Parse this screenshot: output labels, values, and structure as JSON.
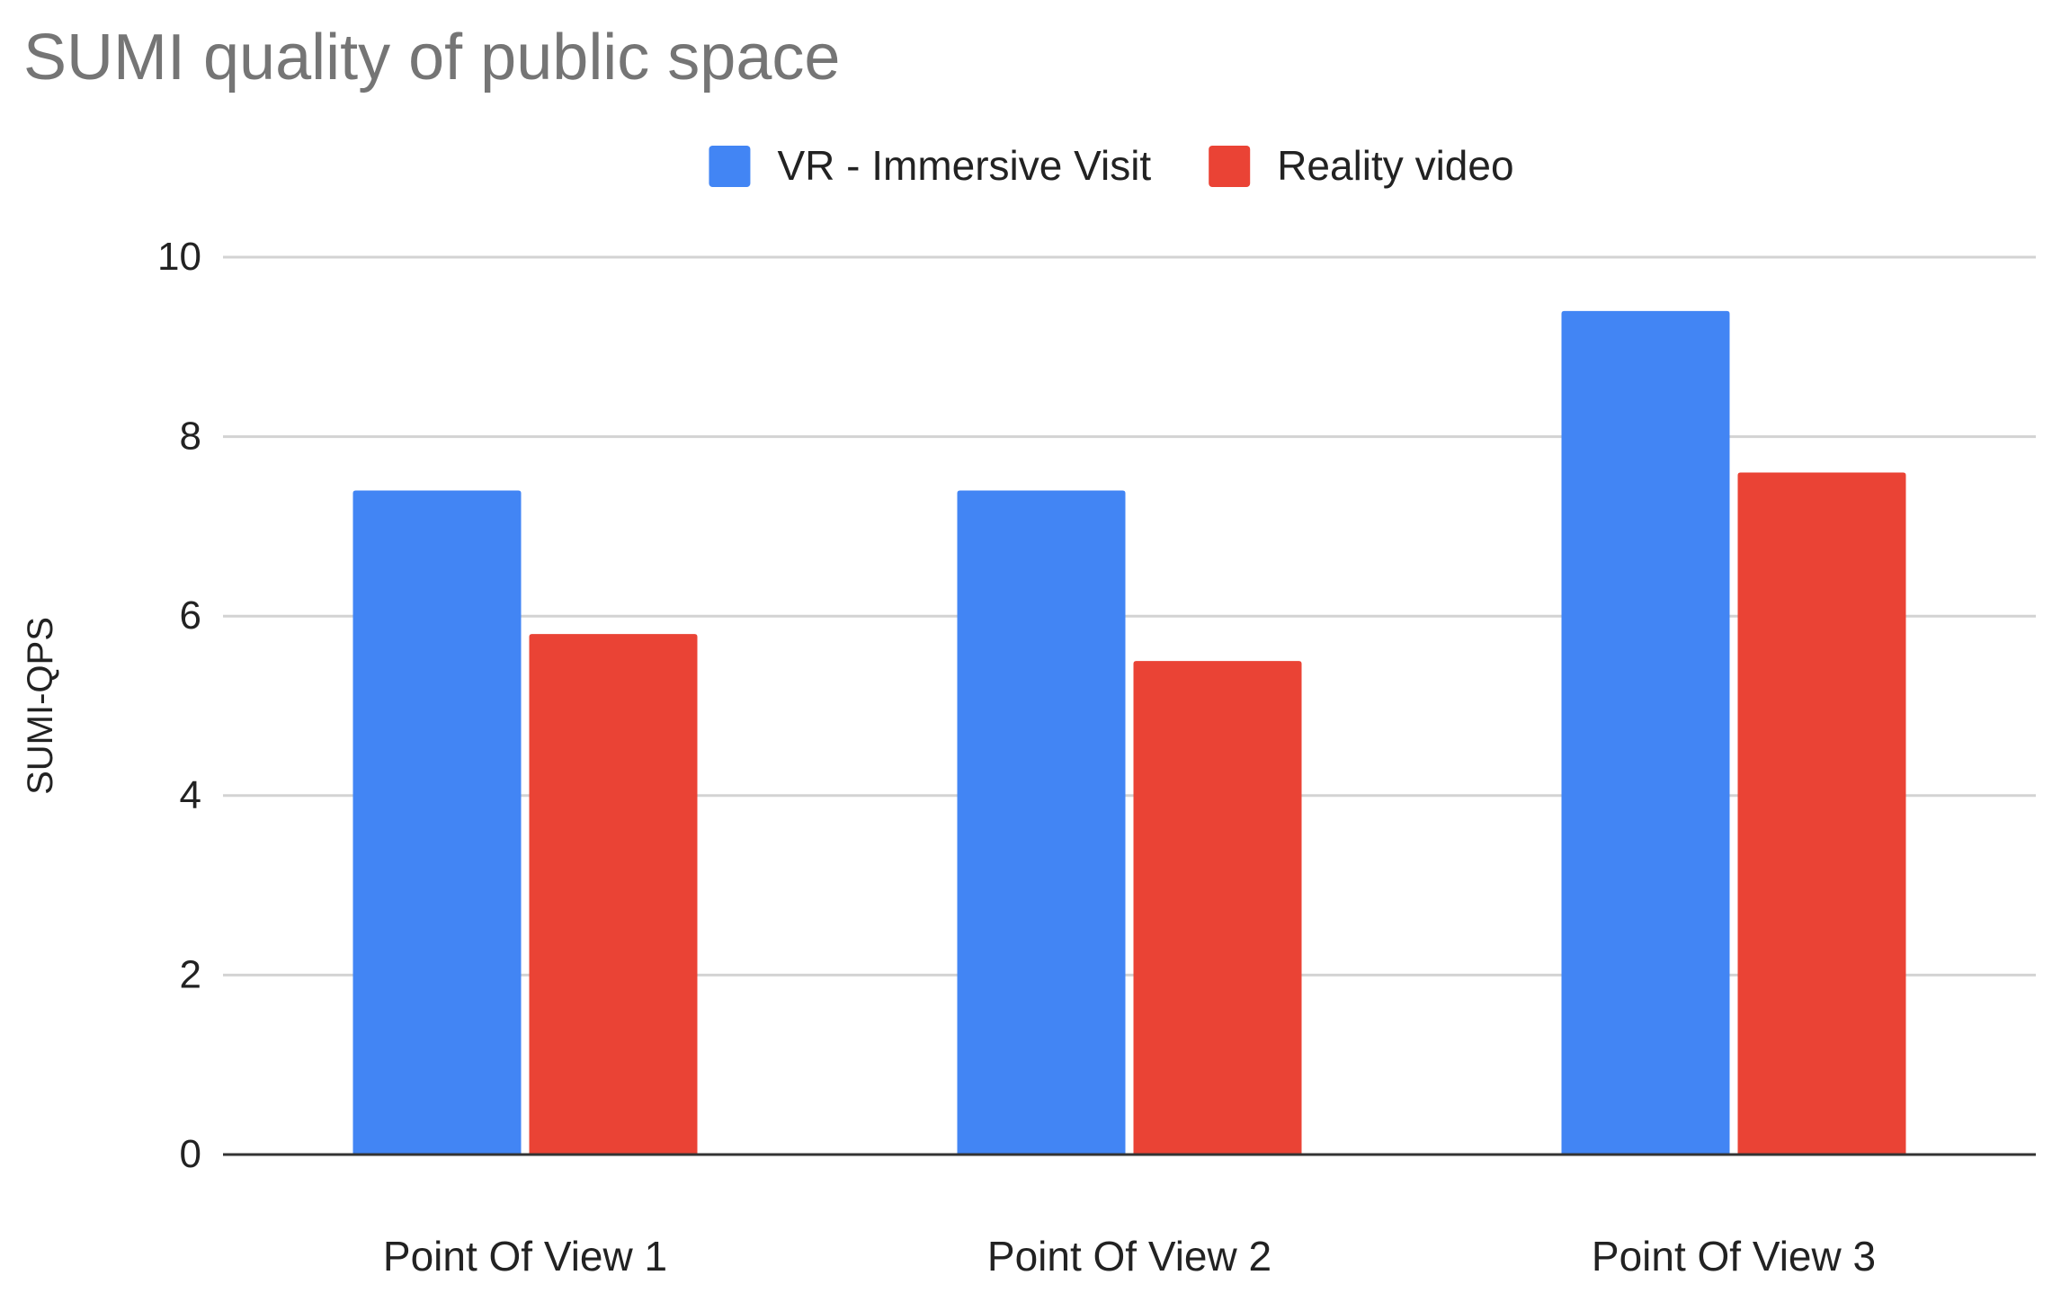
{
  "chart_data": {
    "type": "bar",
    "title": "SUMI quality of public space",
    "xlabel": "",
    "ylabel": "SUMI-QPS",
    "categories": [
      "Point Of View 1",
      "Point Of View 2",
      "Point Of View 3"
    ],
    "series": [
      {
        "name": "VR - Immersive Visit",
        "color": "#4285f4",
        "values": [
          7.4,
          7.4,
          9.4
        ]
      },
      {
        "name": "Reality video",
        "color": "#ea4335",
        "values": [
          5.8,
          5.5,
          7.6
        ]
      }
    ],
    "ylim": [
      0,
      10
    ],
    "yticks": [
      0,
      2,
      4,
      6,
      8,
      10
    ],
    "grid": true,
    "legend_position": "top-center"
  }
}
